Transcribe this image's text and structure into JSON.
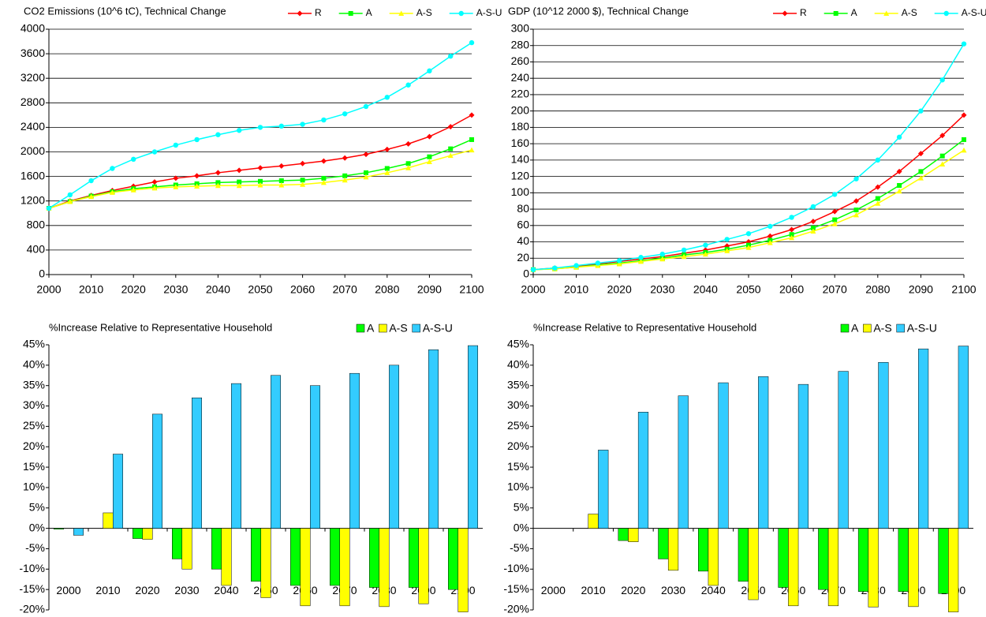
{
  "chart_data": [
    {
      "type": "line",
      "title": "CO2 Emissions (10^6 tC), Technical Change",
      "x": [
        2000,
        2005,
        2010,
        2015,
        2020,
        2025,
        2030,
        2035,
        2040,
        2045,
        2050,
        2055,
        2060,
        2065,
        2070,
        2075,
        2080,
        2085,
        2090,
        2095,
        2100
      ],
      "xlim": [
        2000,
        2100
      ],
      "xticks": [
        2000,
        2010,
        2020,
        2030,
        2040,
        2050,
        2060,
        2070,
        2080,
        2090,
        2100
      ],
      "ylim": [
        0,
        4000
      ],
      "yticks": [
        0,
        400,
        800,
        1200,
        1600,
        2000,
        2400,
        2800,
        3200,
        3600,
        4000
      ],
      "grid": true,
      "series": [
        {
          "name": "R",
          "color": "#ff0000",
          "marker": "diamond",
          "values": [
            1080,
            1200,
            1290,
            1370,
            1440,
            1510,
            1570,
            1610,
            1660,
            1700,
            1740,
            1770,
            1810,
            1850,
            1900,
            1960,
            2040,
            2130,
            2250,
            2410,
            2600
          ]
        },
        {
          "name": "A",
          "color": "#00ff00",
          "marker": "square",
          "values": [
            1080,
            1190,
            1280,
            1350,
            1400,
            1430,
            1460,
            1480,
            1500,
            1510,
            1520,
            1530,
            1540,
            1570,
            1610,
            1660,
            1730,
            1810,
            1920,
            2050,
            2200
          ]
        },
        {
          "name": "A-S",
          "color": "#ffff00",
          "marker": "triangle",
          "values": [
            1080,
            1190,
            1270,
            1340,
            1380,
            1410,
            1430,
            1440,
            1450,
            1450,
            1460,
            1460,
            1470,
            1500,
            1540,
            1590,
            1660,
            1740,
            1840,
            1940,
            2030
          ]
        },
        {
          "name": "A-S-U",
          "color": "#00ffff",
          "marker": "circle",
          "values": [
            1080,
            1300,
            1530,
            1730,
            1880,
            2000,
            2110,
            2200,
            2280,
            2350,
            2400,
            2420,
            2450,
            2520,
            2620,
            2740,
            2890,
            3090,
            3320,
            3560,
            3780
          ]
        }
      ]
    },
    {
      "type": "line",
      "title": "GDP (10^12 2000 $), Technical Change",
      "x": [
        2000,
        2005,
        2010,
        2015,
        2020,
        2025,
        2030,
        2035,
        2040,
        2045,
        2050,
        2055,
        2060,
        2065,
        2070,
        2075,
        2080,
        2085,
        2090,
        2095,
        2100
      ],
      "xlim": [
        2000,
        2100
      ],
      "xticks": [
        2000,
        2010,
        2020,
        2030,
        2040,
        2050,
        2060,
        2070,
        2080,
        2090,
        2100
      ],
      "ylim": [
        0,
        300
      ],
      "yticks": [
        0,
        20,
        40,
        60,
        80,
        100,
        120,
        140,
        160,
        180,
        200,
        220,
        240,
        260,
        280,
        300
      ],
      "grid": true,
      "series": [
        {
          "name": "R",
          "color": "#ff0000",
          "marker": "diamond",
          "values": [
            6,
            8,
            10,
            13,
            16,
            19,
            22,
            26,
            30,
            35,
            40,
            47,
            55,
            65,
            77,
            90,
            107,
            126,
            148,
            170,
            195
          ]
        },
        {
          "name": "A",
          "color": "#00ff00",
          "marker": "square",
          "values": [
            6,
            7,
            9,
            12,
            14,
            17,
            20,
            24,
            27,
            31,
            36,
            42,
            49,
            57,
            67,
            79,
            93,
            109,
            126,
            145,
            165
          ]
        },
        {
          "name": "A-S",
          "color": "#ffff00",
          "marker": "triangle",
          "values": [
            6,
            7,
            9,
            11,
            13,
            16,
            19,
            22,
            25,
            29,
            33,
            39,
            45,
            53,
            62,
            73,
            87,
            102,
            118,
            135,
            152
          ]
        },
        {
          "name": "A-S-U",
          "color": "#00ffff",
          "marker": "circle",
          "values": [
            6,
            8,
            11,
            14,
            17,
            21,
            25,
            30,
            36,
            43,
            50,
            59,
            70,
            83,
            98,
            117,
            140,
            168,
            200,
            238,
            282
          ]
        }
      ]
    },
    {
      "type": "bar",
      "title": "%Increase Relative to Representative Household",
      "categories": [
        "2000",
        "2010",
        "2020",
        "2030",
        "2040",
        "2050",
        "2060",
        "2070",
        "2080",
        "2090",
        "2100"
      ],
      "ylim": [
        -20,
        45
      ],
      "grid": false,
      "yticks": [
        {
          "value": -20,
          "label": "-20%"
        },
        {
          "value": -15,
          "label": "-15%"
        },
        {
          "value": -10,
          "label": "-10%"
        },
        {
          "value": -5,
          "label": "-5%"
        },
        {
          "value": 0,
          "label": "0%"
        },
        {
          "value": 5,
          "label": "5%"
        },
        {
          "value": 10,
          "label": "10%"
        },
        {
          "value": 15,
          "label": "15%"
        },
        {
          "value": 20,
          "label": "20%"
        },
        {
          "value": 25,
          "label": "25%"
        },
        {
          "value": 30,
          "label": "30%"
        },
        {
          "value": 35,
          "label": "35%"
        },
        {
          "value": 40,
          "label": "40%"
        },
        {
          "value": 45,
          "label": "45%"
        }
      ],
      "series": [
        {
          "name": "A",
          "color": "#00ff00",
          "values": [
            -0.2,
            0,
            -2.5,
            -7.5,
            -10,
            -13,
            -14,
            -14,
            -14.5,
            -14.5,
            -15
          ]
        },
        {
          "name": "A-S",
          "color": "#ffff00",
          "values": [
            0,
            3.8,
            -2.7,
            -10,
            -14,
            -17,
            -19,
            -19,
            -19.2,
            -18.5,
            -20.5
          ]
        },
        {
          "name": "A-S-U",
          "color": "#33ccff",
          "values": [
            -1.7,
            18.2,
            28,
            32,
            35.5,
            37.5,
            35,
            38,
            40,
            43.8,
            44.8
          ]
        }
      ]
    },
    {
      "type": "bar",
      "title": "%Increase Relative to Representative Household",
      "categories": [
        "2000",
        "2010",
        "2020",
        "2030",
        "2040",
        "2050",
        "2060",
        "2070",
        "2080",
        "2090",
        "2100"
      ],
      "ylim": [
        -20,
        45
      ],
      "grid": false,
      "yticks": [
        {
          "value": -20,
          "label": "-20%"
        },
        {
          "value": -15,
          "label": "-15%"
        },
        {
          "value": -10,
          "label": "-10%"
        },
        {
          "value": -5,
          "label": "-5%"
        },
        {
          "value": 0,
          "label": "0%"
        },
        {
          "value": 5,
          "label": "5%"
        },
        {
          "value": 10,
          "label": "10%"
        },
        {
          "value": 15,
          "label": "15%"
        },
        {
          "value": 20,
          "label": "20%"
        },
        {
          "value": 25,
          "label": "25%"
        },
        {
          "value": 30,
          "label": "30%"
        },
        {
          "value": 35,
          "label": "35%"
        },
        {
          "value": 40,
          "label": "40%"
        },
        {
          "value": 45,
          "label": "45%"
        }
      ],
      "series": [
        {
          "name": "A",
          "color": "#00ff00",
          "values": [
            0,
            0,
            -3,
            -7.5,
            -10.5,
            -13,
            -14.5,
            -15,
            -15.5,
            -15.5,
            -16
          ]
        },
        {
          "name": "A-S",
          "color": "#ffff00",
          "values": [
            0,
            3.5,
            -3.3,
            -10.3,
            -14,
            -17.5,
            -19,
            -19,
            -19.3,
            -19.2,
            -20.5
          ]
        },
        {
          "name": "A-S-U",
          "color": "#33ccff",
          "values": [
            0,
            19.2,
            28.5,
            32.5,
            35.7,
            37.2,
            35.3,
            38.5,
            40.7,
            44,
            44.7
          ]
        }
      ]
    }
  ]
}
